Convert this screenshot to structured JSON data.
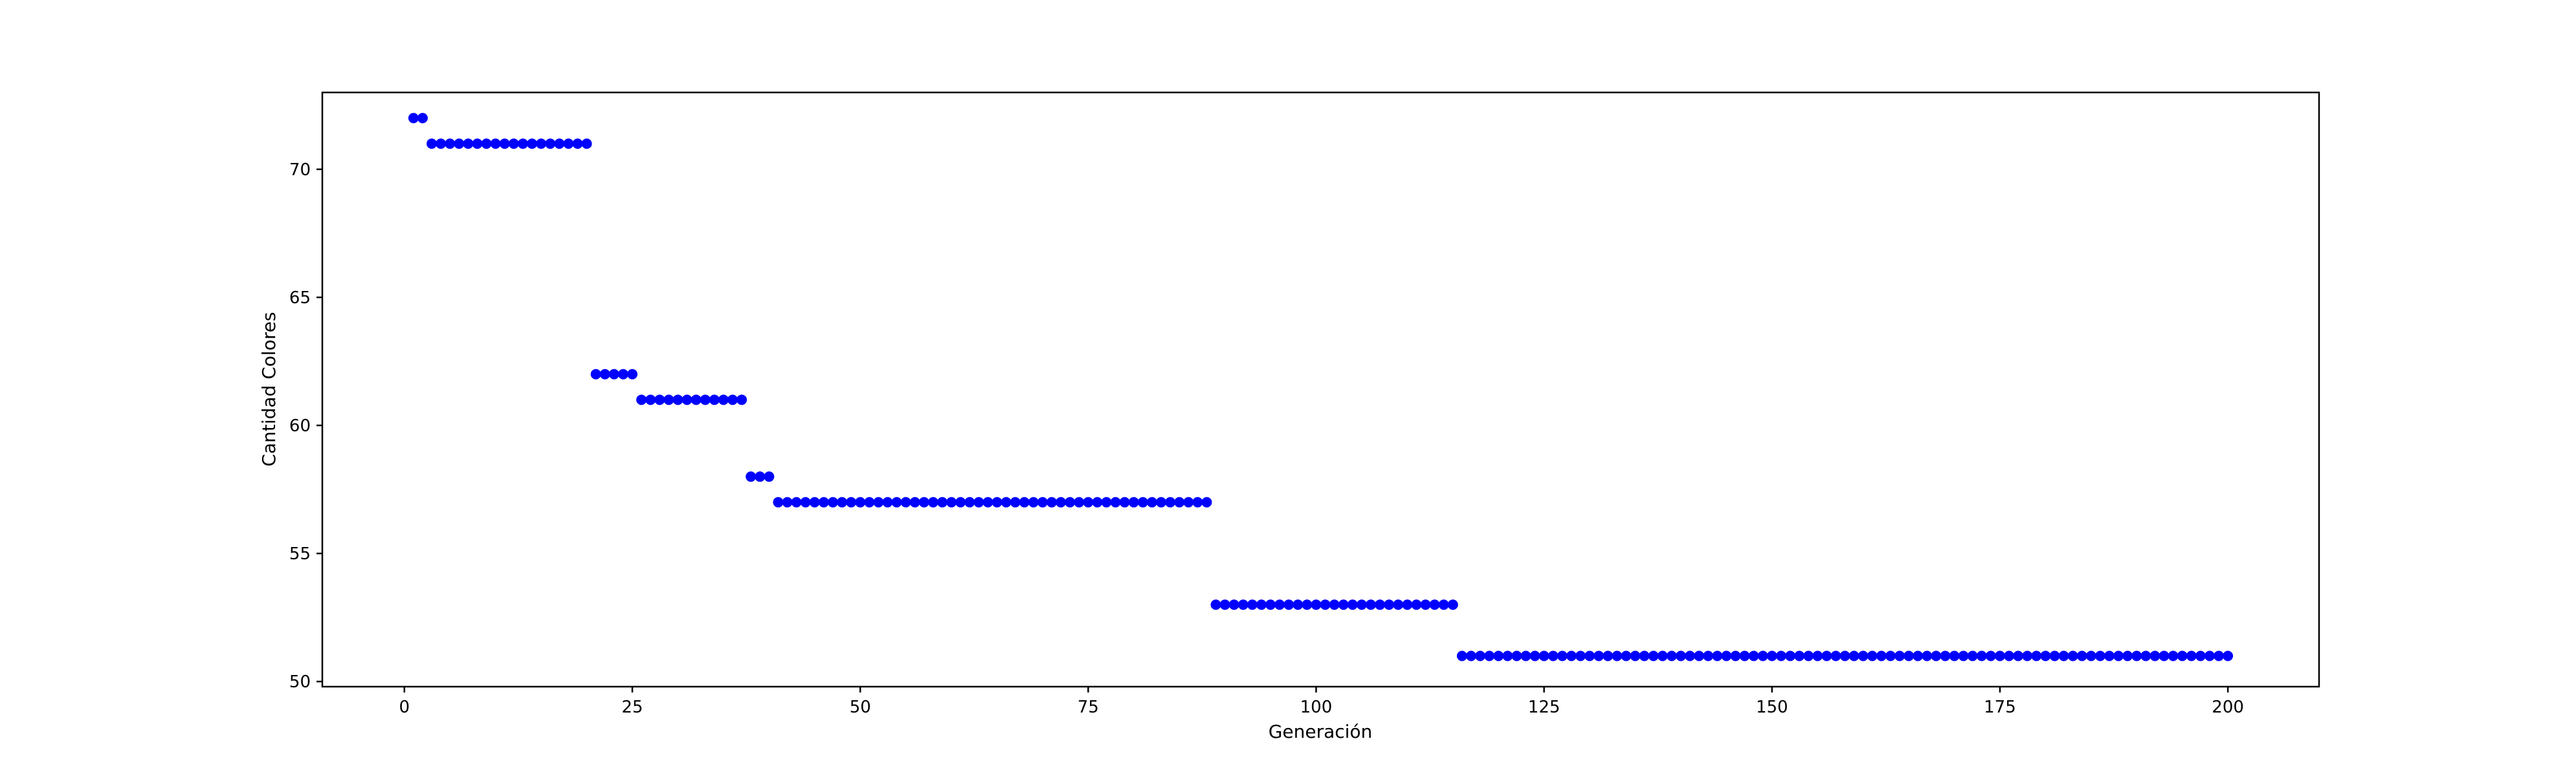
{
  "chart_data": {
    "type": "scatter",
    "title": "",
    "xlabel": "Generación",
    "ylabel": "Cantidad Colores",
    "xlim": [
      -9,
      210
    ],
    "ylim": [
      49.8,
      73.0
    ],
    "xticks": [
      0,
      25,
      50,
      75,
      100,
      125,
      150,
      175,
      200
    ],
    "yticks": [
      50,
      55,
      60,
      65,
      70
    ],
    "grid": false,
    "legend": "none",
    "marker_color": "#0000ff",
    "series": [
      {
        "segments": [
          {
            "x_start": 1,
            "x_end": 2,
            "y": 72
          },
          {
            "x_start": 3,
            "x_end": 20,
            "y": 71
          },
          {
            "x_start": 21,
            "x_end": 25,
            "y": 62
          },
          {
            "x_start": 26,
            "x_end": 37,
            "y": 61
          },
          {
            "x_start": 38,
            "x_end": 40,
            "y": 58
          },
          {
            "x_start": 41,
            "x_end": 88,
            "y": 57
          },
          {
            "x_start": 89,
            "x_end": 115,
            "y": 53
          },
          {
            "x_start": 116,
            "x_end": 200,
            "y": 51
          }
        ]
      }
    ]
  }
}
